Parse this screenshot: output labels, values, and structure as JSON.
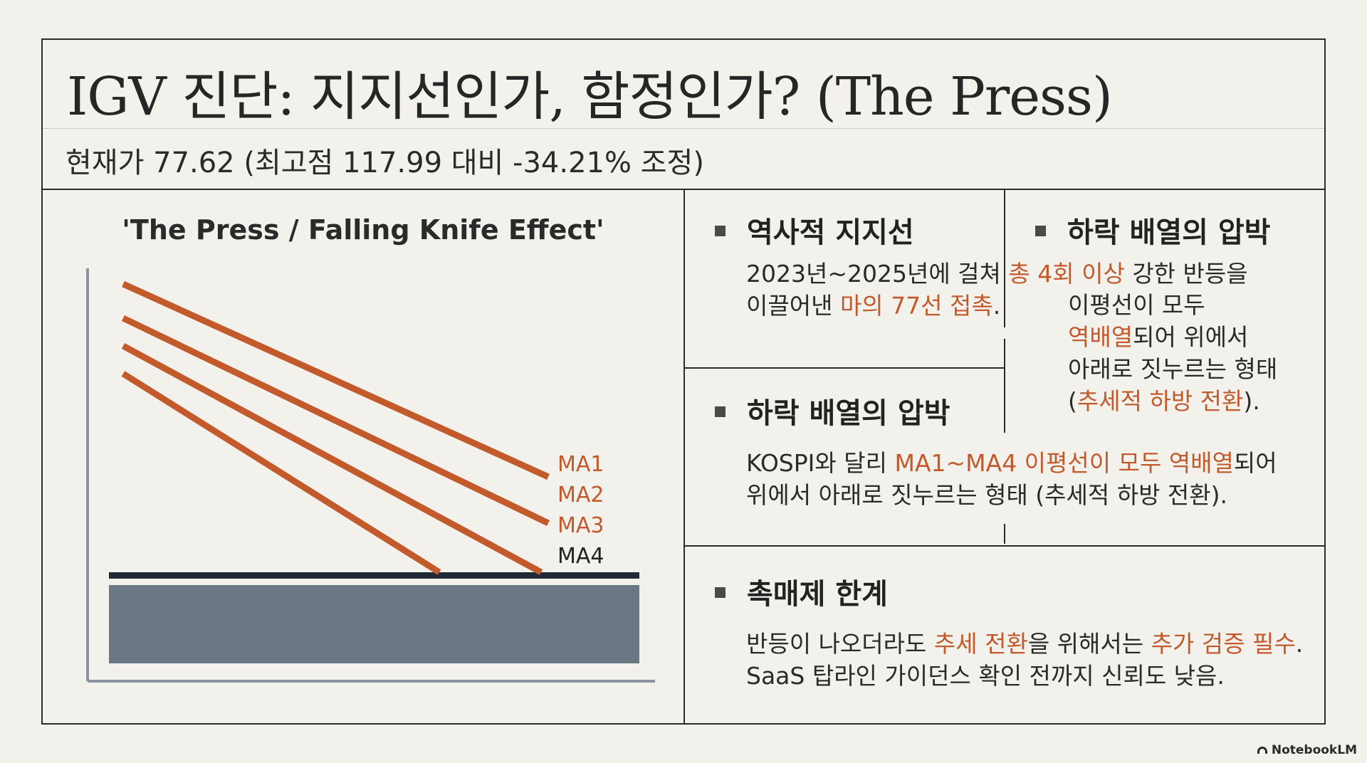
{
  "title": "IGV 진단: 지지선인가, 함정인가? (The Press)",
  "subtitle": "현재가 77.62 (최고점 117.99 대비 -34.21% 조정)",
  "chart": {
    "title": "'The Press / Falling Knife Effect'",
    "lines": [
      {
        "name": "MA1",
        "color": "#c25a2c"
      },
      {
        "name": "MA2",
        "color": "#c25a2c"
      },
      {
        "name": "MA3",
        "color": "#c25a2c"
      },
      {
        "name": "MA4",
        "color": "#c25a2c"
      }
    ],
    "label_colors": [
      "#c25a2c",
      "#c25a2c",
      "#c25a2c",
      "#222222"
    ],
    "support_bar_color": "#6b7785",
    "support_line_color": "#1f2a36",
    "axis_color": "#8a94a0"
  },
  "panels": {
    "support": {
      "heading": "역사적 지지선",
      "line1_pre": "2023년~2025년에 걸쳐 ",
      "line1_accent": "총 4회 이상",
      "line1_post": " 강한 반등을",
      "line2_pre": "이끌어낸 ",
      "line2_accent": "마의 77선 접촉",
      "line2_post": "."
    },
    "pressure_top": {
      "heading": "하락 배열의 압박",
      "line1": "이평선이 모두",
      "line2_accent": "역배열",
      "line2_post": "되어 위에서",
      "line3": "아래로 짓누르는 형태",
      "line4_pre": "(",
      "line4_accent": "추세적 하방 전환",
      "line4_post": ")."
    },
    "pressure": {
      "heading": "하락 배열의 압박",
      "line1_pre": "KOSPI와 달리 ",
      "line1_accent": "MA1~MA4 이평선이 모두 역배열",
      "line1_post": "되어",
      "line2": "위에서 아래로 짓누르는 형태 (추세적 하방 전환)."
    },
    "catalyst": {
      "heading": "촉매제 한계",
      "line1_pre": "반등이 나오더라도 ",
      "line1_accent1": "추세 전환",
      "line1_mid": "을 위해서는 ",
      "line1_accent2": "추가 검증 필수",
      "line1_post": ".",
      "line2": "SaaS 탑라인 가이던스 확인 전까지 신뢰도 낮음."
    }
  },
  "footer": {
    "brand": "NotebookLM"
  }
}
